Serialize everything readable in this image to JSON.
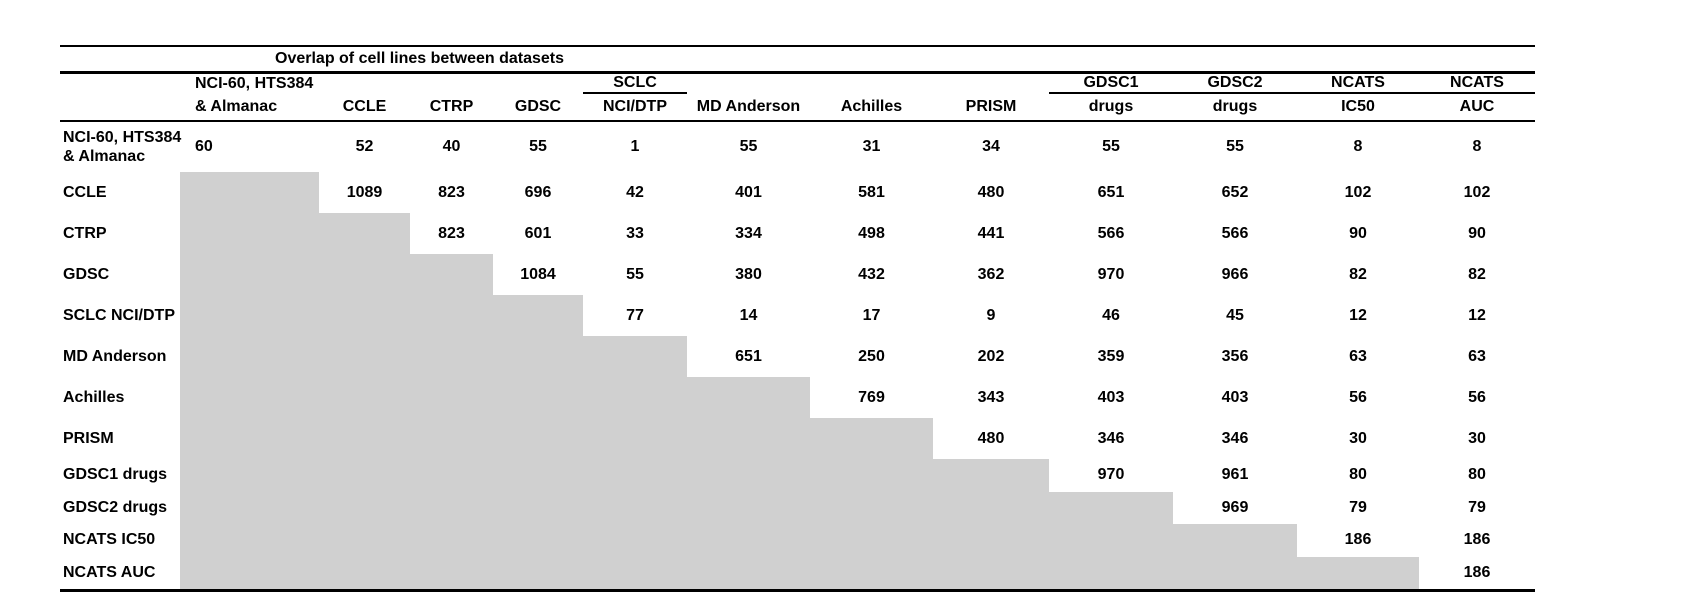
{
  "chart_data": {
    "type": "table",
    "title": "Overlap of cell lines between datasets",
    "columns": [
      {
        "line1": "NCI-60, HTS384",
        "line2": "& Almanac",
        "group_underline": false,
        "align": "left"
      },
      {
        "line1": "",
        "line2": "CCLE",
        "group_underline": false,
        "align": "center"
      },
      {
        "line1": "",
        "line2": "CTRP",
        "group_underline": false,
        "align": "center"
      },
      {
        "line1": "",
        "line2": "GDSC",
        "group_underline": false,
        "align": "center"
      },
      {
        "line1": "SCLC",
        "line2": "NCI/DTP",
        "group_underline": true,
        "align": "center"
      },
      {
        "line1": "",
        "line2": "MD Anderson",
        "group_underline": false,
        "align": "center"
      },
      {
        "line1": "",
        "line2": "Achilles",
        "group_underline": false,
        "align": "center"
      },
      {
        "line1": "",
        "line2": "PRISM",
        "group_underline": false,
        "align": "center"
      },
      {
        "line1": "GDSC1",
        "line2": "drugs",
        "group_underline": true,
        "align": "center"
      },
      {
        "line1": "GDSC2",
        "line2": "drugs",
        "group_underline": true,
        "align": "center"
      },
      {
        "line1": "NCATS",
        "line2": "IC50",
        "group_underline": true,
        "align": "center"
      },
      {
        "line1": "NCATS",
        "line2": "AUC",
        "group_underline": true,
        "align": "center"
      }
    ],
    "rows": [
      {
        "label_lines": [
          "NCI-60, HTS384",
          "& Almanac"
        ],
        "values": [
          "60",
          "52",
          "40",
          "55",
          "1",
          "55",
          "31",
          "34",
          "55",
          "55",
          "8",
          "8"
        ]
      },
      {
        "label_lines": [
          "CCLE"
        ],
        "values": [
          null,
          "1089",
          "823",
          "696",
          "42",
          "401",
          "581",
          "480",
          "651",
          "652",
          "102",
          "102"
        ]
      },
      {
        "label_lines": [
          "CTRP"
        ],
        "values": [
          null,
          null,
          "823",
          "601",
          "33",
          "334",
          "498",
          "441",
          "566",
          "566",
          "90",
          "90"
        ]
      },
      {
        "label_lines": [
          "GDSC"
        ],
        "values": [
          null,
          null,
          null,
          "1084",
          "55",
          "380",
          "432",
          "362",
          "970",
          "966",
          "82",
          "82"
        ]
      },
      {
        "label_lines": [
          "SCLC NCI/DTP"
        ],
        "values": [
          null,
          null,
          null,
          null,
          "77",
          "14",
          "17",
          "9",
          "46",
          "45",
          "12",
          "12"
        ]
      },
      {
        "label_lines": [
          "MD Anderson"
        ],
        "values": [
          null,
          null,
          null,
          null,
          null,
          "651",
          "250",
          "202",
          "359",
          "356",
          "63",
          "63"
        ]
      },
      {
        "label_lines": [
          "Achilles"
        ],
        "values": [
          null,
          null,
          null,
          null,
          null,
          null,
          "769",
          "343",
          "403",
          "403",
          "56",
          "56"
        ]
      },
      {
        "label_lines": [
          "PRISM"
        ],
        "values": [
          null,
          null,
          null,
          null,
          null,
          null,
          null,
          "480",
          "346",
          "346",
          "30",
          "30"
        ]
      },
      {
        "label_lines": [
          "GDSC1 drugs"
        ],
        "values": [
          null,
          null,
          null,
          null,
          null,
          null,
          null,
          null,
          "970",
          "961",
          "80",
          "80"
        ]
      },
      {
        "label_lines": [
          "GDSC2 drugs"
        ],
        "values": [
          null,
          null,
          null,
          null,
          null,
          null,
          null,
          null,
          null,
          "969",
          "79",
          "79"
        ]
      },
      {
        "label_lines": [
          "NCATS IC50"
        ],
        "values": [
          null,
          null,
          null,
          null,
          null,
          null,
          null,
          null,
          null,
          null,
          "186",
          "186"
        ]
      },
      {
        "label_lines": [
          "NCATS AUC"
        ],
        "values": [
          null,
          null,
          null,
          null,
          null,
          null,
          null,
          null,
          null,
          null,
          null,
          "186"
        ]
      }
    ],
    "colors": {
      "shaded_cell": "#d0d0d0",
      "line": "#000000",
      "text": "#000000",
      "background": "#ffffff"
    },
    "layout_hints": {
      "matrix_shape": "upper-triangular",
      "lower_triangle": "shaded"
    }
  }
}
